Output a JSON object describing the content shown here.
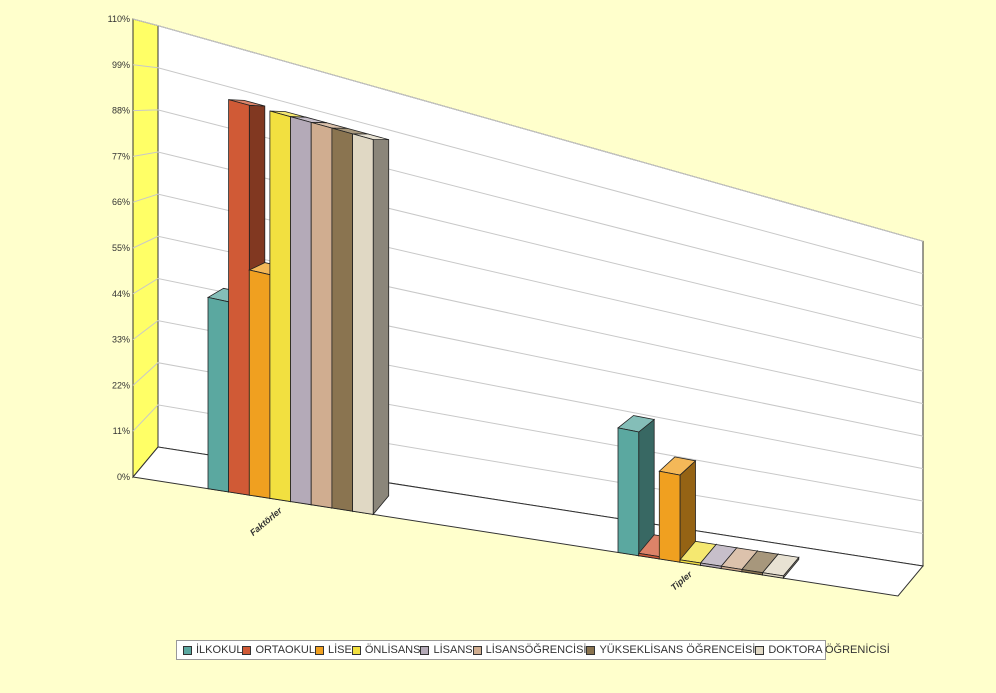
{
  "chart_data": {
    "type": "bar",
    "subtype": "3d-clustered",
    "categories": [
      "Faktörler",
      "Tipler"
    ],
    "series": [
      {
        "name": "İLKOKUL",
        "color": "#5ba8a0",
        "values": [
          47,
          35
        ]
      },
      {
        "name": "ORTAOKUL",
        "color": "#d05a36",
        "values": [
          97,
          0
        ]
      },
      {
        "name": "LİSE",
        "color": "#f0a020",
        "values": [
          56,
          25
        ]
      },
      {
        "name": "ÖNLİSANS",
        "color": "#f2e040",
        "values": [
          97,
          0
        ]
      },
      {
        "name": "LİSANS",
        "color": "#b4aab8",
        "values": [
          97,
          0
        ]
      },
      {
        "name": "LİSANSÖĞRENCİSİ",
        "color": "#d0ad90",
        "values": [
          97,
          0
        ]
      },
      {
        "name": "YÜKSEKLİSANS ÖĞRENCEİSİ",
        "color": "#8a7450",
        "values": [
          97,
          0
        ]
      },
      {
        "name": "DOKTORA ÖĞRENİCİSİ",
        "color": "#e0d8c4",
        "values": [
          97,
          0
        ]
      }
    ],
    "y_ticks": [
      "0%",
      "11%",
      "22%",
      "33%",
      "44%",
      "55%",
      "66%",
      "77%",
      "88%",
      "99%",
      "110%"
    ],
    "ylim": [
      0,
      110
    ],
    "grid": true,
    "legend_position": "bottom"
  }
}
